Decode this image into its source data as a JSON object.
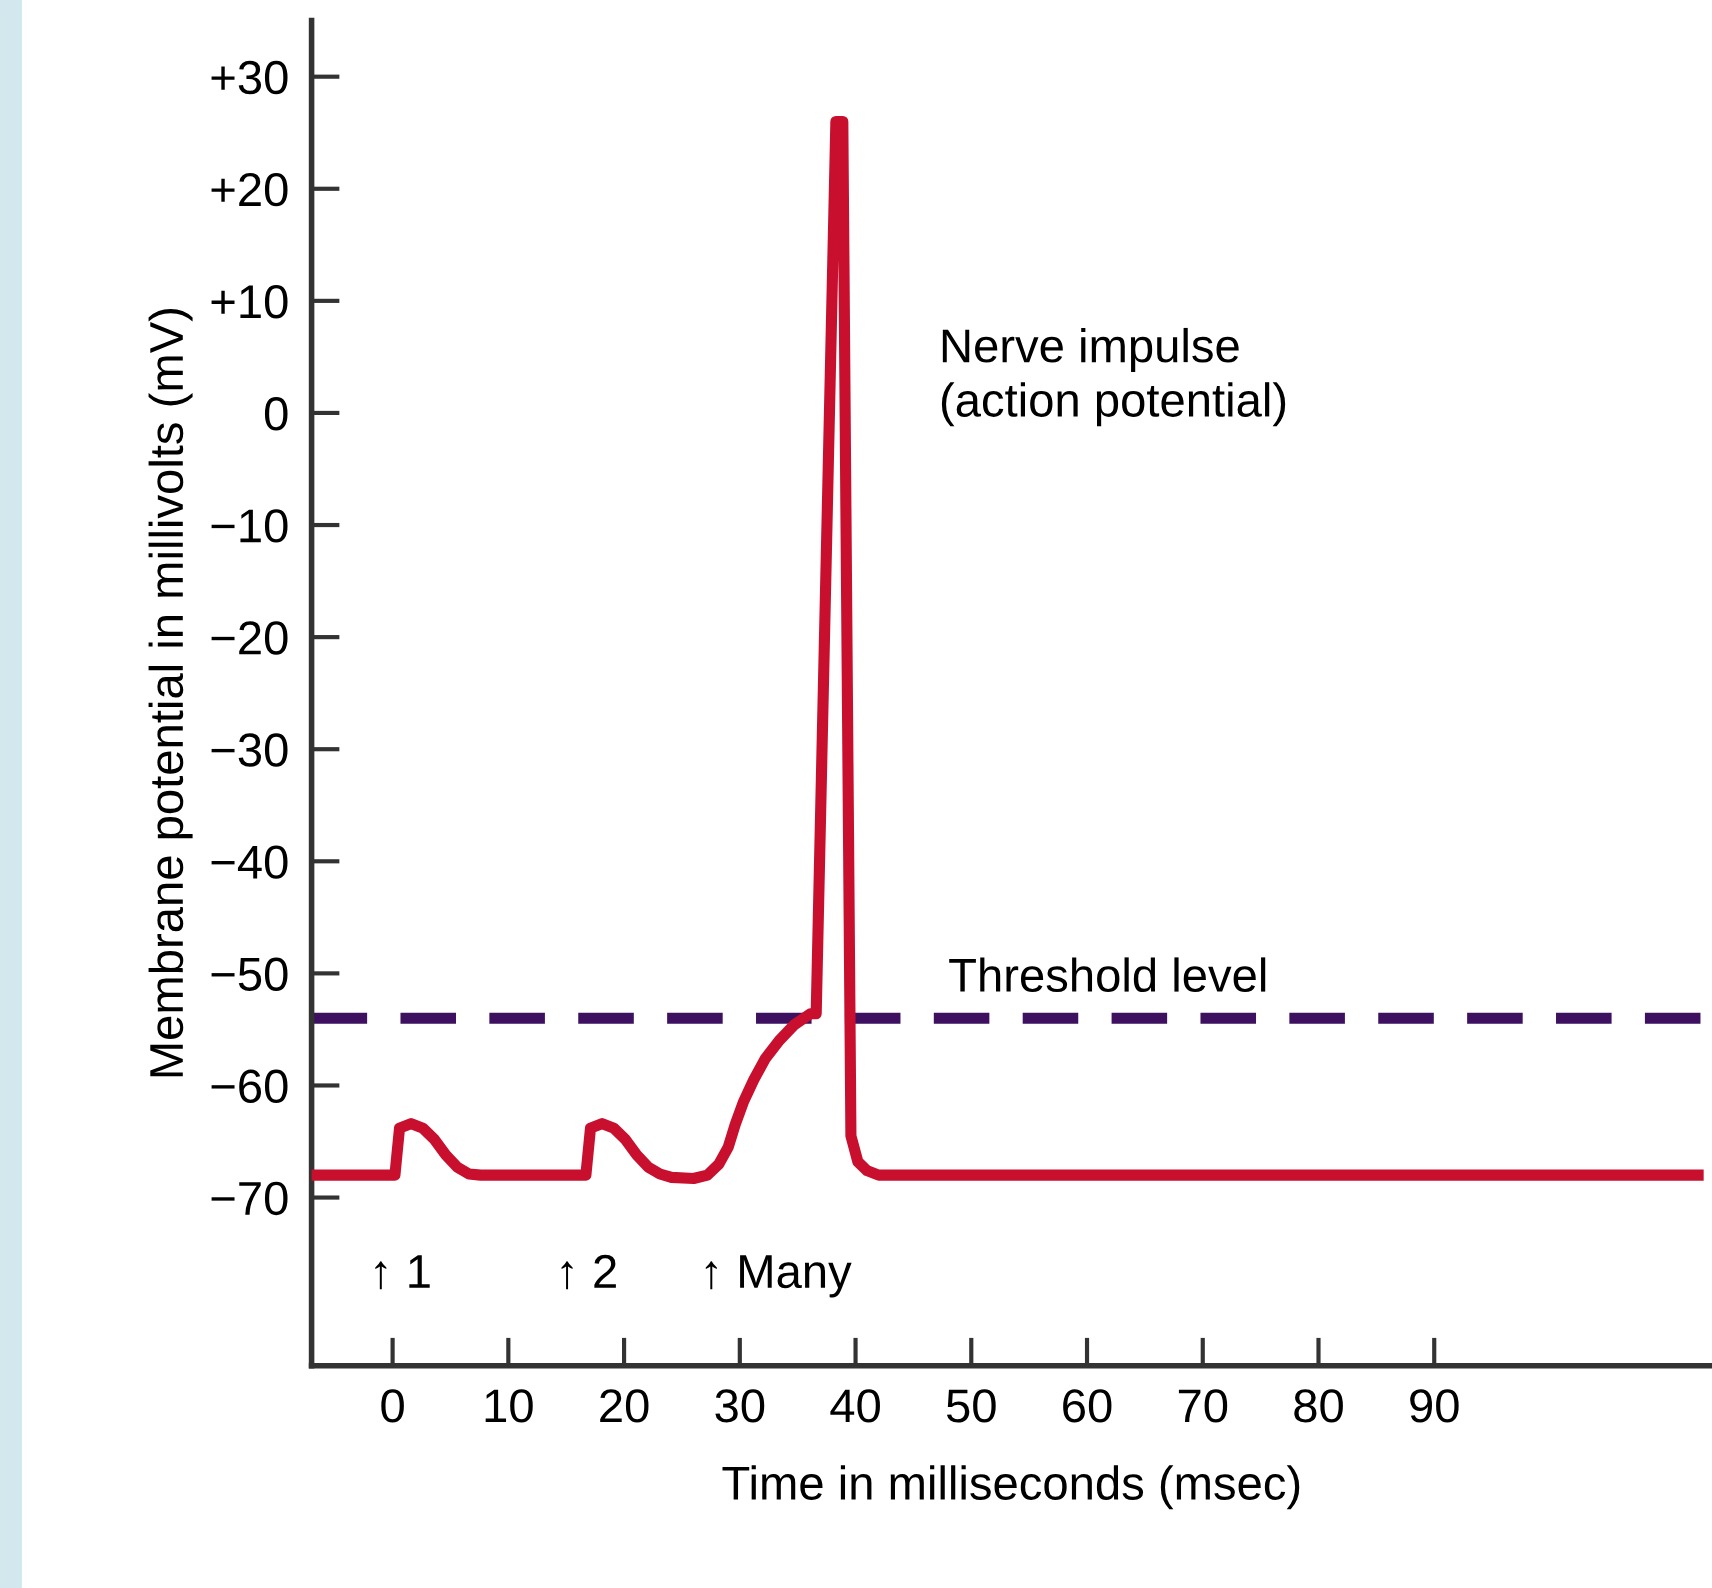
{
  "chart_data": {
    "type": "line",
    "xlabel": "Time in milliseconds (msec)",
    "ylabel": "Membrane potential in millivolts (mV)",
    "xlim": [
      -7,
      114
    ],
    "ylim": [
      -85,
      35
    ],
    "xticks": [
      0,
      10,
      20,
      30,
      40,
      50,
      60,
      70,
      80,
      90
    ],
    "yticks": [
      {
        "value": 30,
        "label": "+30"
      },
      {
        "value": 20,
        "label": "+20"
      },
      {
        "value": 10,
        "label": "+10"
      },
      0,
      {
        "value": -10,
        "label": "−10"
      },
      {
        "value": -20,
        "label": "−20"
      },
      {
        "value": -30,
        "label": "−30"
      },
      {
        "value": -40,
        "label": "−40"
      },
      {
        "value": -50,
        "label": "−50"
      },
      {
        "value": -60,
        "label": "−60"
      },
      {
        "value": -70,
        "label": "−70"
      }
    ],
    "series": [
      {
        "color": "#c8102e",
        "x": [
          -7,
          0.2,
          0.6,
          1.6,
          2.6,
          3.6,
          4.6,
          5.6,
          6.6,
          7.6,
          16.7,
          17.1,
          18.1,
          19.1,
          20.1,
          21.1,
          22.1,
          23.1,
          24.1,
          26,
          27.2,
          28.2,
          29.0,
          29.6,
          30.3,
          31.2,
          32.2,
          33.4,
          34.7,
          36.1,
          36.6,
          38.3,
          38.9,
          39.6,
          40.2,
          41.0,
          42.0,
          112.8
        ],
        "values": [
          -68,
          -68,
          -63.8,
          -63.4,
          -63.8,
          -64.8,
          -66.2,
          -67.3,
          -67.9,
          -68,
          -68,
          -63.8,
          -63.4,
          -63.8,
          -64.8,
          -66.2,
          -67.3,
          -67.9,
          -68.2,
          -68.3,
          -68,
          -67,
          -65.5,
          -63.5,
          -61.5,
          -59.5,
          -57.6,
          -56,
          -54.6,
          -53.6,
          -53.6,
          26,
          26,
          -64.5,
          -66.8,
          -67.6,
          -68,
          -68
        ]
      }
    ],
    "ref_lines": [
      {
        "axis": "y",
        "value": -54,
        "label": "Threshold level",
        "color": "#3d1060",
        "line_style": "dashed"
      }
    ],
    "annotations": [
      "Nerve impulse\n(action potential)",
      "↑ 1",
      "↑ 2",
      "↑ Many"
    ],
    "grid": false,
    "legend": false,
    "marker": "none",
    "line_style": "solid"
  }
}
